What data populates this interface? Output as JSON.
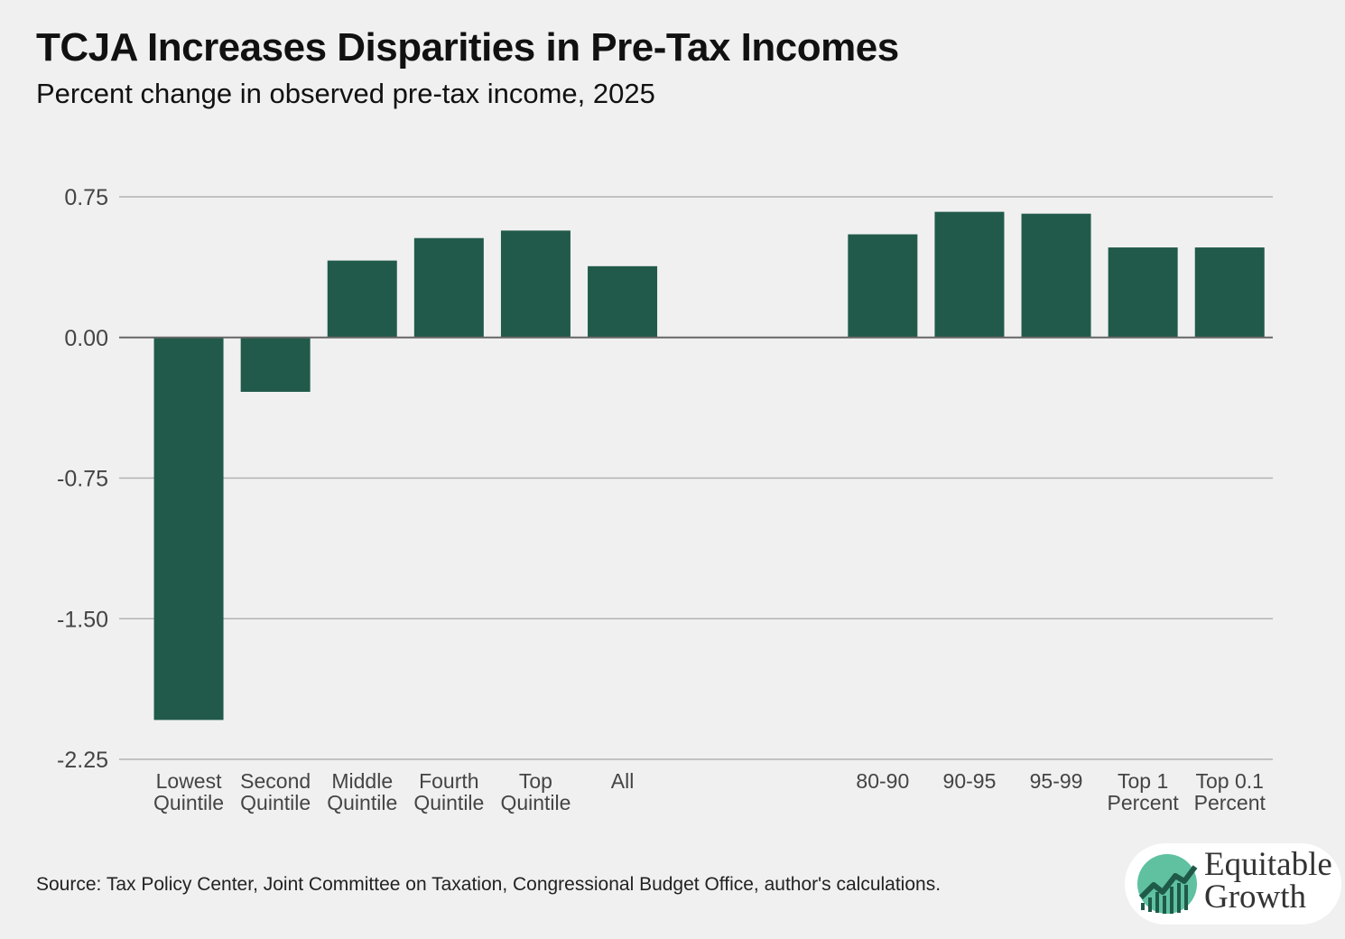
{
  "chart_data": {
    "type": "bar",
    "title": "TCJA Increases Disparities in Pre-Tax Incomes",
    "subtitle": "Percent change in observed pre-tax income, 2025",
    "categories": [
      "Lowest\nQuintile",
      "Second\nQuintile",
      "Middle\nQuintile",
      "Fourth\nQuintile",
      "Top\nQuintile",
      "All",
      "80-90",
      "90-95",
      "95-99",
      "Top 1\nPercent",
      "Top 0.1\nPercent"
    ],
    "values": [
      -2.04,
      -0.29,
      0.41,
      0.53,
      0.57,
      0.38,
      0.55,
      0.67,
      0.66,
      0.48,
      0.48
    ],
    "ylim": [
      -2.25,
      0.75
    ],
    "yticks": [
      0.75,
      0.0,
      -0.75,
      -1.5,
      -2.25
    ],
    "ytick_labels": [
      "0.75",
      "0.00",
      "-0.75",
      "-1.50",
      "-2.25"
    ],
    "xlabel": "",
    "ylabel": "",
    "grid": true,
    "bar_color": "#215a4a",
    "source": "Source: Tax Policy Center, Joint Committee on Taxation, Congressional Budget Office, author's calculations."
  },
  "logo": {
    "line1": "Equitable",
    "line2": "Growth",
    "icon": "rising-line-chart-icon"
  }
}
